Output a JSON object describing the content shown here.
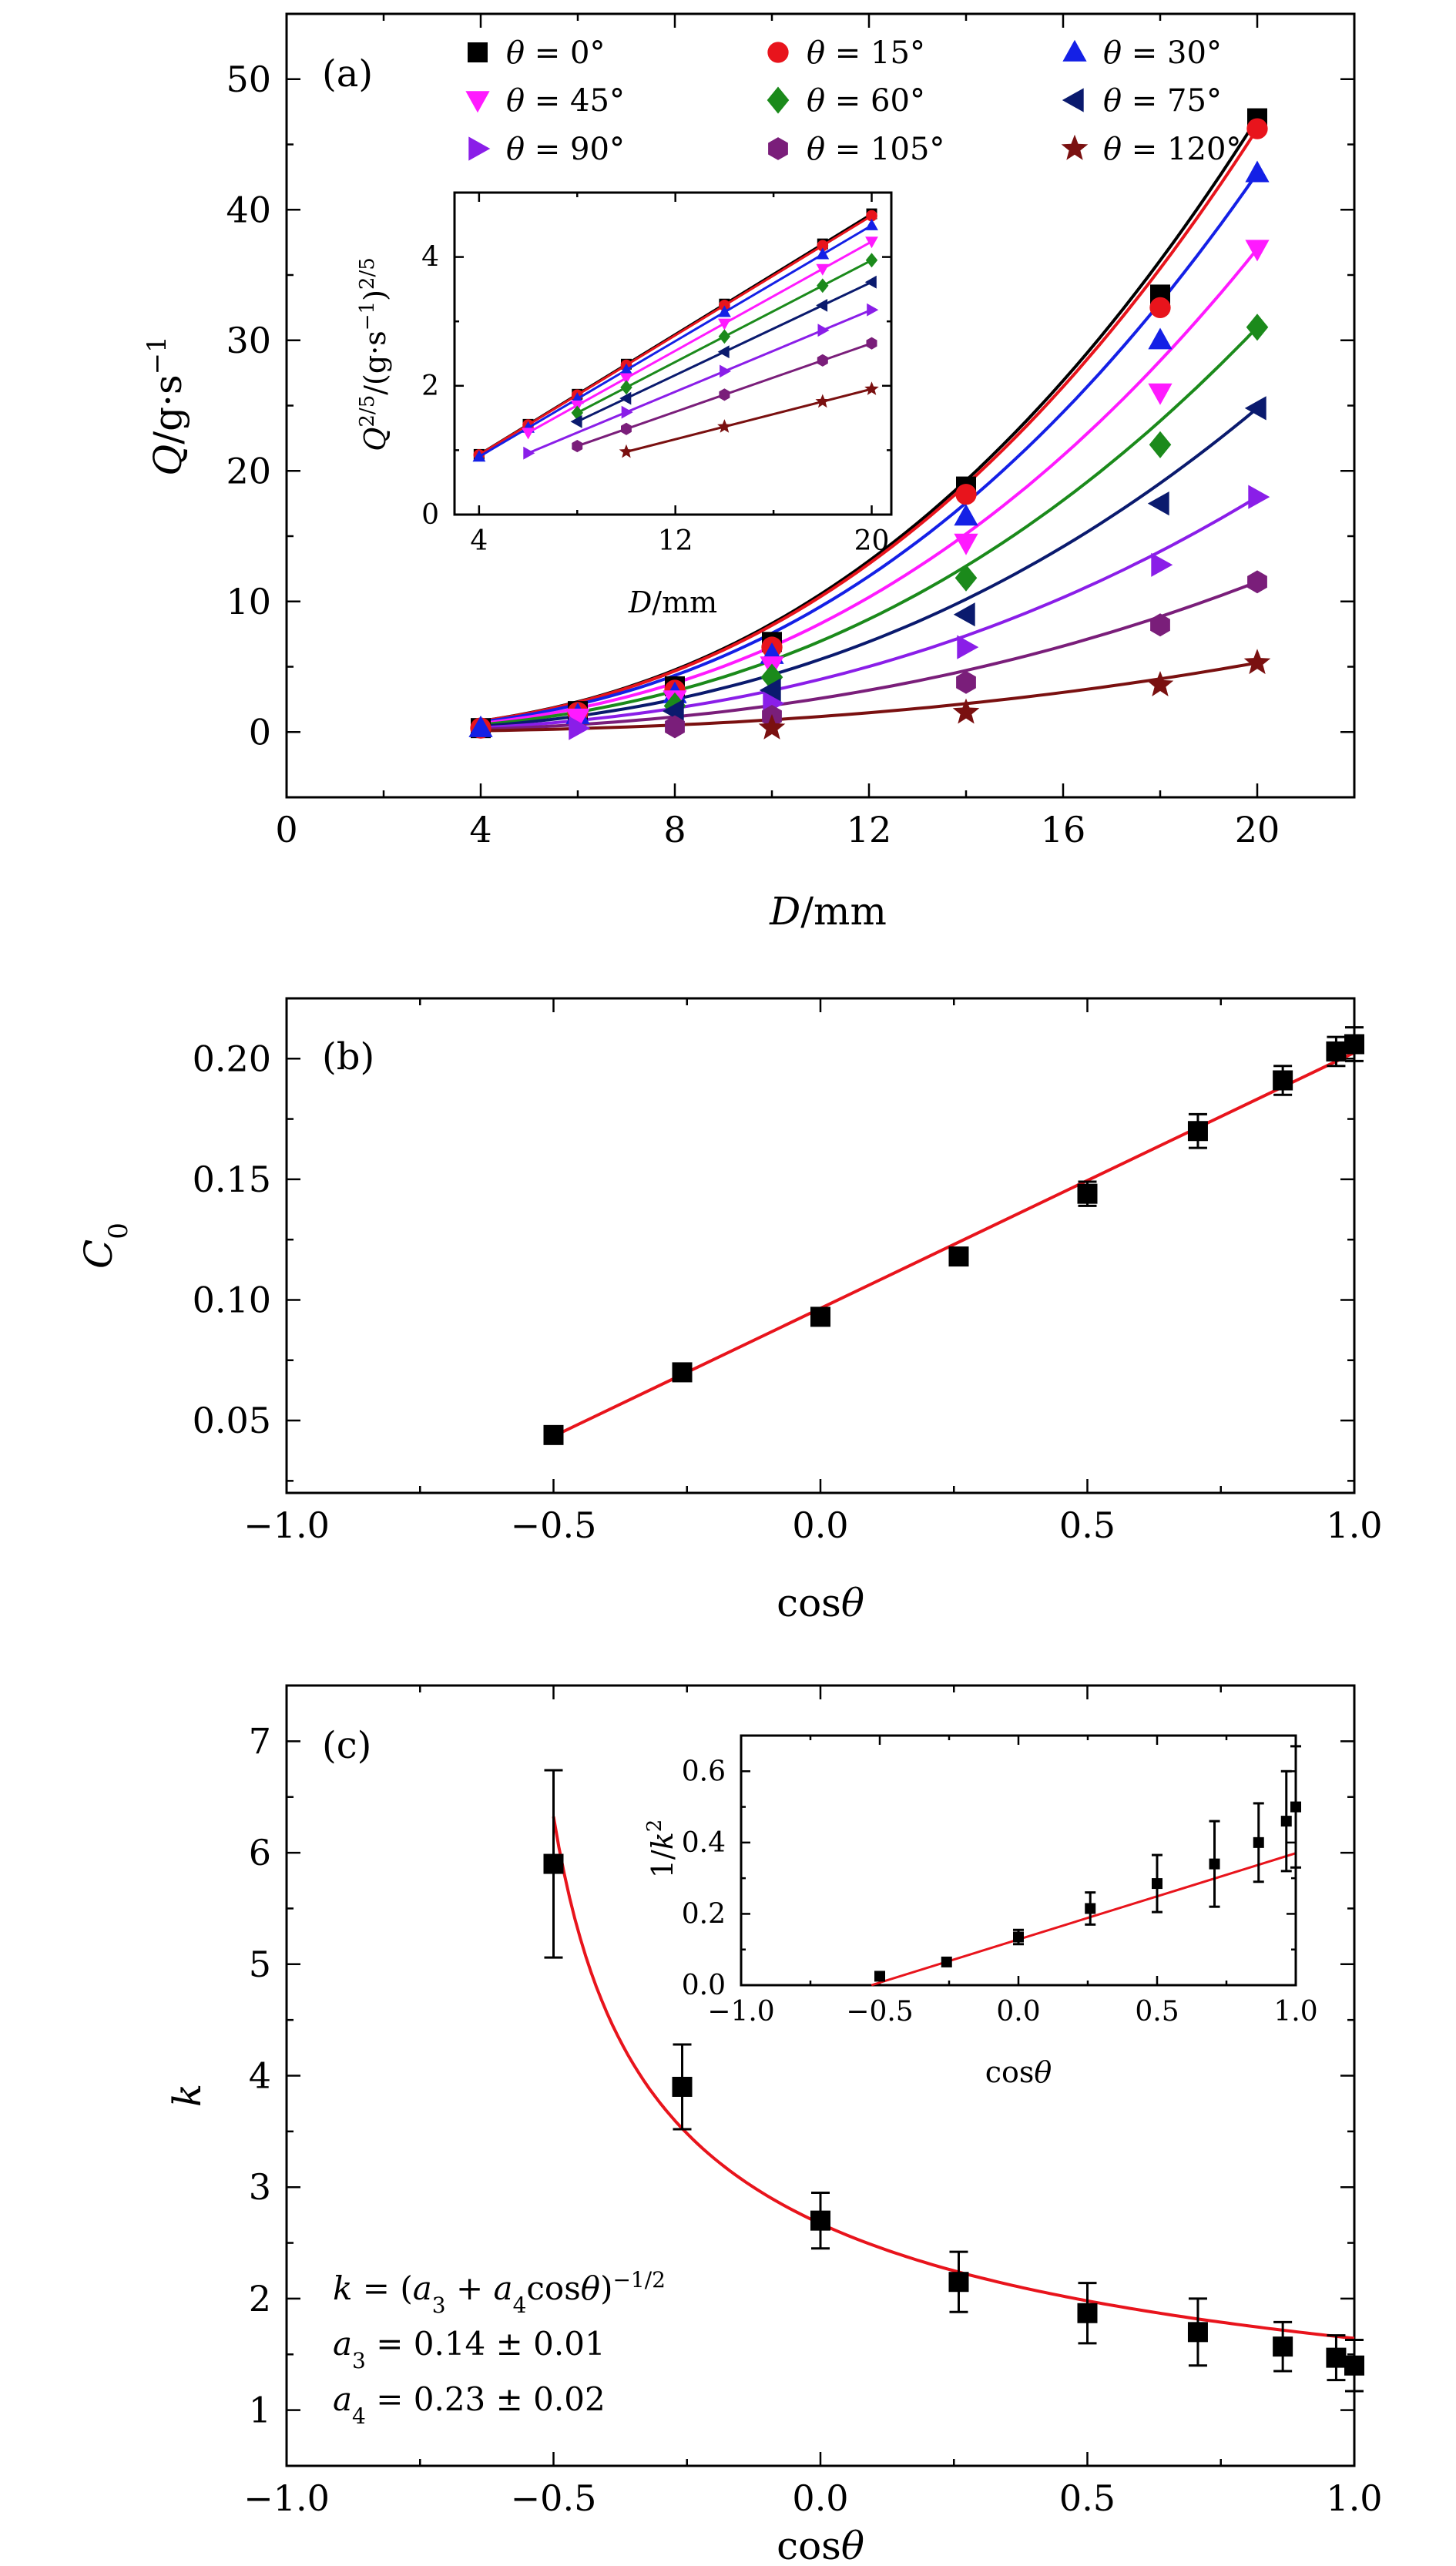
{
  "chart_data": [
    {
      "panel": "(a)",
      "type": "scatter",
      "xlabel": "D/mm",
      "ylabel": "Q/g·s⁻¹",
      "xlim": [
        0,
        22
      ],
      "ylim": [
        -5,
        55
      ],
      "xticks": [
        0,
        4,
        8,
        12,
        16,
        20
      ],
      "yticks": [
        0,
        10,
        20,
        30,
        40,
        50
      ],
      "series": [
        {
          "name": "θ = 0°",
          "color": "#000000",
          "marker": "square",
          "x": [
            4,
            6,
            8,
            10,
            14,
            18,
            20
          ],
          "y": [
            0.3,
            1.6,
            3.5,
            6.9,
            18.8,
            33.5,
            47.0
          ],
          "fit_a": 47.0
        },
        {
          "name": "θ = 15°",
          "color": "#e8141c",
          "marker": "circle",
          "x": [
            4,
            6,
            8,
            10,
            14,
            18,
            20
          ],
          "y": [
            0.3,
            1.5,
            3.2,
            6.5,
            18.2,
            32.5,
            46.2
          ],
          "fit_a": 46.2
        },
        {
          "name": "θ = 30°",
          "color": "#1420e6",
          "marker": "triangle-up",
          "x": [
            4,
            6,
            8,
            10,
            14,
            18,
            20
          ],
          "y": [
            0.3,
            1.3,
            2.9,
            5.9,
            16.5,
            30.0,
            42.8
          ],
          "fit_a": 42.8
        },
        {
          "name": "θ = 45°",
          "color": "#ff1aff",
          "marker": "triangle-down",
          "x": [
            6,
            8,
            10,
            14,
            18,
            20
          ],
          "y": [
            1.1,
            2.5,
            5.1,
            14.5,
            26.0,
            37.0
          ],
          "fit_a": 37.0
        },
        {
          "name": "θ = 60°",
          "color": "#1b8a1b",
          "marker": "diamond",
          "x": [
            8,
            10,
            14,
            18,
            20
          ],
          "y": [
            2.0,
            4.2,
            11.8,
            22.0,
            31.0
          ],
          "fit_a": 31.0
        },
        {
          "name": "θ = 75°",
          "color": "#0a1a6e",
          "marker": "triangle-left",
          "x": [
            8,
            10,
            14,
            18,
            20
          ],
          "y": [
            1.6,
            3.2,
            9.0,
            17.5,
            24.8
          ],
          "fit_a": 24.8
        },
        {
          "name": "θ = 90°",
          "color": "#8a1ee8",
          "marker": "triangle-right",
          "x": [
            6,
            10,
            14,
            18,
            20
          ],
          "y": [
            0.3,
            2.2,
            6.5,
            12.8,
            18.0
          ],
          "fit_a": 18.0
        },
        {
          "name": "θ = 105°",
          "color": "#7a1e7a",
          "marker": "hexagon",
          "x": [
            8,
            10,
            14,
            18,
            20
          ],
          "y": [
            0.4,
            1.2,
            3.8,
            8.2,
            11.5
          ],
          "fit_a": 11.5
        },
        {
          "name": "θ = 120°",
          "color": "#7a1010",
          "marker": "star",
          "x": [
            10,
            14,
            18,
            20
          ],
          "y": [
            0.3,
            1.5,
            3.6,
            5.3
          ],
          "fit_a": 5.3
        }
      ],
      "inset": {
        "type": "scatter",
        "xlabel": "D/mm",
        "ylabel": "Q^2/5/(g·s⁻¹)^2/5",
        "xlim": [
          3,
          20.8
        ],
        "ylim": [
          0,
          5
        ],
        "xticks": [
          4,
          12,
          20
        ],
        "yticks": [
          0,
          2,
          4
        ],
        "series_q25_at_20": [
          4.67,
          4.64,
          4.49,
          4.24,
          3.95,
          3.61,
          3.18,
          2.66,
          1.95
        ],
        "series_x_start": [
          4,
          4,
          4,
          6,
          8,
          8,
          6,
          8,
          10
        ]
      }
    },
    {
      "panel": "(b)",
      "type": "scatter",
      "xlabel": "cosθ",
      "ylabel": "C0",
      "xlim": [
        -1.0,
        1.0
      ],
      "ylim": [
        0.02,
        0.225
      ],
      "xticks": [
        -1.0,
        -0.5,
        0,
        0.5,
        1.0
      ],
      "yticks": [
        0.05,
        0.1,
        0.15,
        0.2
      ],
      "x": [
        -0.5,
        -0.259,
        0,
        0.259,
        0.5,
        0.707,
        0.866,
        0.966,
        1.0
      ],
      "y": [
        0.044,
        0.07,
        0.093,
        0.118,
        0.144,
        0.17,
        0.191,
        0.203,
        0.206
      ],
      "err": [
        0,
        0,
        0.002,
        0.003,
        0.005,
        0.007,
        0.006,
        0.006,
        0.007
      ],
      "fit": {
        "x": [
          -0.5,
          1.0
        ],
        "y": [
          0.0435,
          0.2025
        ]
      }
    },
    {
      "panel": "(c)",
      "type": "scatter",
      "xlabel": "cosθ",
      "ylabel": "k",
      "xlim": [
        -1.0,
        1.0
      ],
      "ylim": [
        0.5,
        7.5
      ],
      "xticks": [
        -1.0,
        -0.5,
        0,
        0.5,
        1.0
      ],
      "yticks": [
        1,
        2,
        3,
        4,
        5,
        6,
        7
      ],
      "x": [
        -0.5,
        -0.259,
        0,
        0.259,
        0.5,
        0.707,
        0.866,
        0.966,
        1.0
      ],
      "y": [
        5.9,
        3.9,
        2.7,
        2.15,
        1.87,
        1.7,
        1.57,
        1.47,
        1.4
      ],
      "err": [
        0.84,
        0.38,
        0.25,
        0.27,
        0.27,
        0.3,
        0.22,
        0.2,
        0.23
      ],
      "fit": {
        "formula": "k=(a3+a4cosθ)^-1/2",
        "a3": 0.14,
        "a4": 0.23,
        "x_range": [
          -0.5,
          1.0
        ]
      },
      "annotation": {
        "line1": "k = (a₃ + a₄cosθ)",
        "line1_exp": "−1/2",
        "line2": "a₃ = 0.14 ± 0.01",
        "line3": "a₄ = 0.23 ± 0.02"
      },
      "inset": {
        "type": "scatter",
        "xlabel": "cosθ",
        "ylabel": "1/k²",
        "xlim": [
          -1.0,
          1.0
        ],
        "ylim": [
          0,
          0.7
        ],
        "xticks": [
          -1.0,
          -0.5,
          0,
          0.5,
          1.0
        ],
        "yticks": [
          0,
          0.2,
          0.4,
          0.6
        ],
        "x": [
          -0.5,
          -0.259,
          0,
          0.259,
          0.5,
          0.707,
          0.866,
          0.966,
          1.0
        ],
        "y": [
          0.025,
          0.065,
          0.135,
          0.215,
          0.285,
          0.34,
          0.4,
          0.46,
          0.5
        ],
        "err": [
          0,
          0,
          0.02,
          0.045,
          0.08,
          0.12,
          0.11,
          0.14,
          0.17
        ]
      }
    }
  ]
}
